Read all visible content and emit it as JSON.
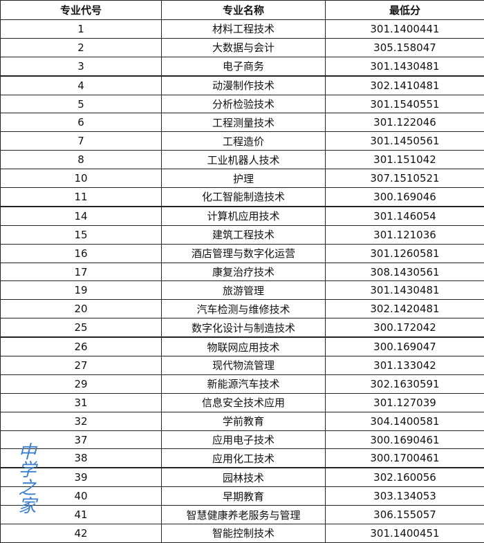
{
  "headers": [
    "专业代号",
    "专业名称",
    "最低分"
  ],
  "rows": [
    [
      "1",
      "材料工程技术",
      "301.1400441"
    ],
    [
      "2",
      "大数据与会计",
      "305.158047"
    ],
    [
      "3",
      "电子商务",
      "301.1430481"
    ],
    [
      "4",
      "动漫制作技术",
      "302.1410481"
    ],
    [
      "5",
      "分析检验技术",
      "301.1540551"
    ],
    [
      "6",
      "工程测量技术",
      "301.122046"
    ],
    [
      "7",
      "工程造价",
      "301.1450561"
    ],
    [
      "8",
      "工业机器人技术",
      "301.151042"
    ],
    [
      "10",
      "护理",
      "307.1510521"
    ],
    [
      "11",
      "化工智能制造技术",
      "300.169046"
    ],
    [
      "14",
      "计算机应用技术",
      "301.146054"
    ],
    [
      "15",
      "建筑工程技术",
      "301.121036"
    ],
    [
      "16",
      "酒店管理与数字化运营",
      "301.1260581"
    ],
    [
      "17",
      "康复治疗技术",
      "308.1430561"
    ],
    [
      "19",
      "旅游管理",
      "301.1430481"
    ],
    [
      "20",
      "汽车检测与维修技术",
      "302.1420481"
    ],
    [
      "25",
      "数字化设计与制造技术",
      "300.172042"
    ],
    [
      "26",
      "物联网应用技术",
      "300.169047"
    ],
    [
      "27",
      "现代物流管理",
      "301.133042"
    ],
    [
      "29",
      "新能源汽车技术",
      "302.1630591"
    ],
    [
      "31",
      "信息安全技术应用",
      "301.127039"
    ],
    [
      "32",
      "学前教育",
      "304.1400581"
    ],
    [
      "37",
      "应用电子技术",
      "300.1690461"
    ],
    [
      "38",
      "应用化工技术",
      "300.1700461"
    ],
    [
      "39",
      "园林技术",
      "302.160056"
    ],
    [
      "40",
      "早期教育",
      "303.134053"
    ],
    [
      "41",
      "智慧健康养老服务与管理",
      "306.155057"
    ],
    [
      "42",
      "智能控制技术",
      "301.1400451"
    ]
  ],
  "watermark": "中学之家"
}
